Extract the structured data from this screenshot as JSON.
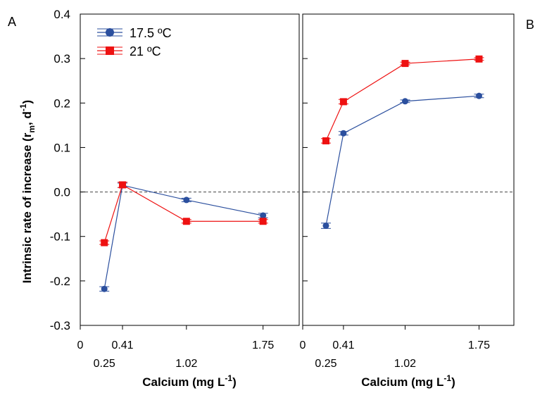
{
  "figure": {
    "ylabel_main": "Intrinsic rate of increase (r",
    "ylabel_sub_m": "m",
    "ylabel_mid": ", d",
    "ylabel_sup": "-1",
    "ylabel_end": ")"
  },
  "colors": {
    "blue": "#2b4f9e",
    "red": "#ee1111",
    "axis": "#000000",
    "zero_line": "#444444"
  },
  "chart_data": [
    {
      "type": "line",
      "panel_label": "A",
      "xlabel_main": "Calcium (mg L",
      "xlabel_sup": "-1",
      "xlabel_end": ")",
      "xlim": [
        0,
        2.0
      ],
      "ylim": [
        -0.3,
        0.4
      ],
      "x_ticks": [
        0,
        0.41,
        1.02,
        1.75
      ],
      "x_tick_labels_upper": [
        "0",
        "0.41",
        "",
        "1.75"
      ],
      "x_tick_labels_lower": [
        "0.25",
        "1.02"
      ],
      "y_ticks": [
        -0.3,
        -0.2,
        -0.1,
        0.0,
        0.1,
        0.2,
        0.3,
        0.4
      ],
      "y_tick_labels": [
        "-0.3",
        "-0.2",
        "-0.1",
        "0.0",
        "0.1",
        "0.2",
        "0.3",
        "0.4"
      ],
      "reference_line": 0.0,
      "legend": {
        "placement": "top-left",
        "entries": [
          "17.5 ºC",
          "21 ºC"
        ]
      },
      "series": [
        {
          "name": "17.5 ºC",
          "marker": "circle",
          "color": "#2b4f9e",
          "x": [
            0.25,
            0.41,
            1.02,
            1.75
          ],
          "y": [
            -0.218,
            0.015,
            -0.018,
            -0.053
          ],
          "err": [
            0.005,
            0.005,
            0.004,
            0.005
          ]
        },
        {
          "name": "21 ºC",
          "marker": "square",
          "color": "#ee1111",
          "x": [
            0.25,
            0.41,
            1.02,
            1.75
          ],
          "y": [
            -0.114,
            0.016,
            -0.066,
            -0.066
          ],
          "err": [
            0.004,
            0.006,
            0.004,
            0.004
          ]
        }
      ]
    },
    {
      "type": "line",
      "panel_label": "B",
      "xlabel_main": "Calcium (mg L",
      "xlabel_sup": "-1",
      "xlabel_end": ")",
      "xlim": [
        0,
        2.0
      ],
      "ylim": [
        -0.3,
        0.4
      ],
      "x_ticks": [
        0,
        0.41,
        1.02,
        1.75
      ],
      "x_tick_labels_upper": [
        "0",
        "0.41",
        "",
        "1.75"
      ],
      "x_tick_labels_lower": [
        "0.25",
        "1.02"
      ],
      "reference_line": 0.0,
      "series": [
        {
          "name": "17.5 ºC",
          "marker": "circle",
          "color": "#2b4f9e",
          "x": [
            0.25,
            0.41,
            1.02,
            1.75
          ],
          "y": [
            -0.076,
            0.132,
            0.204,
            0.216
          ],
          "err": [
            0.006,
            0.004,
            0.003,
            0.004
          ]
        },
        {
          "name": "21 ºC",
          "marker": "square",
          "color": "#ee1111",
          "x": [
            0.25,
            0.41,
            1.02,
            1.75
          ],
          "y": [
            0.115,
            0.203,
            0.289,
            0.299
          ],
          "err": [
            0.005,
            0.005,
            0.003,
            0.003
          ]
        }
      ]
    }
  ]
}
